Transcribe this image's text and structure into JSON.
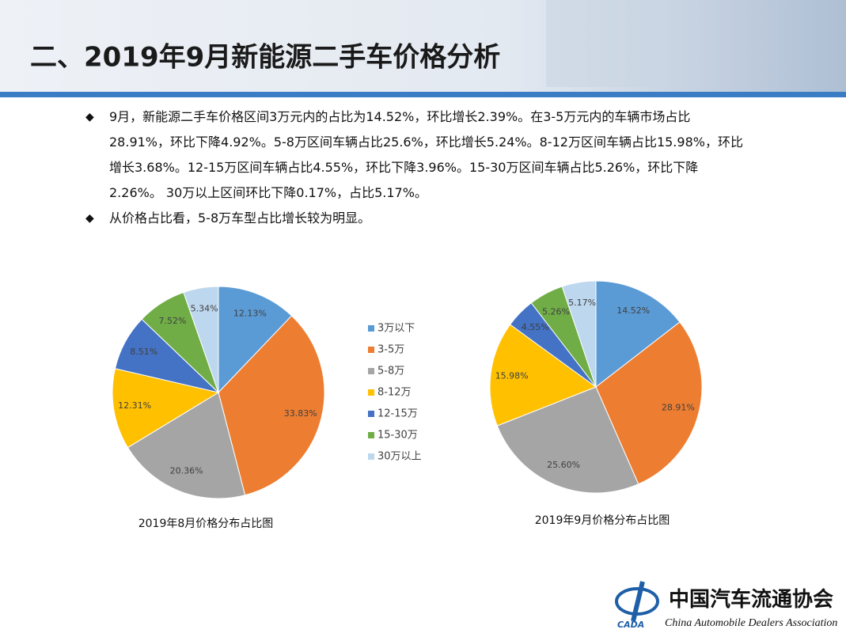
{
  "header": {
    "title": "二、2019年9月新能源二手车价格分析"
  },
  "bullets": [
    "9月，新能源二手车价格区间3万元内的占比为14.52%，环比增长2.39%。在3-5万元内的车辆市场占比28.91%，环比下降4.92%。5-8万区间车辆占比25.6%，环比增长5.24%。8-12万区间车辆占比15.98%，环比增长3.68%。12-15万区间车辆占比4.55%，环比下降3.96%。15-30万区间车辆占比5.26%，环比下降2.26%。 30万以上区间环比下降0.17%，占比5.17%。",
    "从价格占比看，5-8万车型占比增长较为明显。"
  ],
  "legend": {
    "categories": [
      "3万以下",
      "3-5万",
      "5-8万",
      "8-12万",
      "12-15万",
      "15-30万",
      "30万以上"
    ],
    "colors": [
      "#5b9bd5",
      "#ed7d31",
      "#a5a5a5",
      "#ffc000",
      "#4472c4",
      "#70ad47",
      "#bdd7ee"
    ]
  },
  "chart_data": [
    {
      "type": "pie",
      "caption": "2019年8月价格分布占比图",
      "values": [
        12.13,
        33.83,
        20.36,
        12.31,
        8.51,
        7.52,
        5.34
      ],
      "value_labels": [
        "12.13%",
        "33.83%",
        "20.36%",
        "12.31%",
        "8.51%",
        "7.52%",
        "5.34%"
      ]
    },
    {
      "type": "pie",
      "caption": "2019年9月价格分布占比图",
      "values": [
        14.52,
        28.91,
        25.6,
        15.98,
        4.55,
        5.26,
        5.17
      ],
      "value_labels": [
        "14.52%",
        "28.91%",
        "25.60%",
        "15.98%",
        "4.55%",
        "5.26%",
        "5.17%"
      ]
    }
  ],
  "logo": {
    "name": "中国汽车流通协会",
    "english": "China Automobile Dealers Association",
    "abbr": "CADA"
  }
}
